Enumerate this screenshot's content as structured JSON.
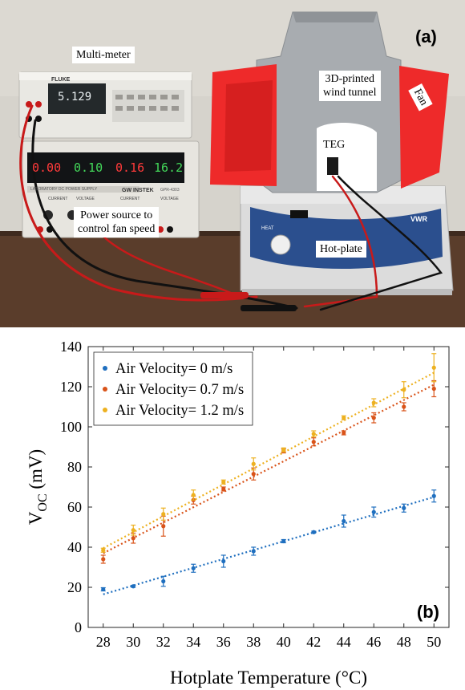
{
  "photo": {
    "panel_label": "(a)",
    "callouts": {
      "multimeter": "Multi-meter",
      "wind_tunnel": "3D-printed\nwind tunnel",
      "fan": "Fan",
      "teg": "TEG",
      "power_source": "Power source to\ncontrol fan speed",
      "hotplate": "Hot-plate"
    },
    "device_text": {
      "multimeter_reading": "5.129",
      "multimeter_brand": "FLUKE",
      "psu_brand": "GW INSTEK",
      "psu_title": "LABORATORY DC POWER SUPPLY",
      "psu_model": "GPR-4303",
      "psu_d1": "0.00",
      "psu_d2": "0.10",
      "psu_d3": "0.16",
      "psu_d4": "16.2",
      "psu_labels": [
        "CURRENT",
        "VOLTAGE",
        "CURRENT",
        "VOLTAGE"
      ],
      "hotplate_brand": "VWR",
      "hotplate_knob": "HEAT"
    },
    "colors": {
      "fan": "#ee2a2a",
      "tunnel": "#a8acb0",
      "wall": "#d6d3cc",
      "table": "#5a3d2b",
      "cable_red": "#c81a1a"
    }
  },
  "chart_data": {
    "type": "scatter",
    "panel_label": "(b)",
    "xlabel": "Hotplate Temperature (°C)",
    "ylabel_main": "V",
    "ylabel_sub": "OC",
    "ylabel_unit": " (mV)",
    "xlim": [
      27,
      51
    ],
    "ylim": [
      0,
      140
    ],
    "xticks": [
      28,
      30,
      32,
      34,
      36,
      38,
      40,
      42,
      44,
      46,
      48,
      50
    ],
    "yticks": [
      0,
      20,
      40,
      60,
      80,
      100,
      120,
      140
    ],
    "x": [
      28,
      30,
      32,
      34,
      36,
      38,
      40,
      42,
      44,
      46,
      48,
      50
    ],
    "legend_position": "top-left",
    "series": [
      {
        "name": "Air Velocity= 0 m/s",
        "color": "#1f6fbf",
        "values": [
          19,
          20.5,
          23,
          29.5,
          33,
          38,
          43,
          47.5,
          53,
          57.5,
          59.5,
          65.5
        ],
        "errors": [
          0.8,
          0.5,
          2.5,
          2,
          3,
          2,
          0.8,
          0.5,
          3,
          2.5,
          2,
          3
        ],
        "fit": [
          16.5,
          65
        ]
      },
      {
        "name": "Air Velocity= 0.7 m/s",
        "color": "#d95319",
        "values": [
          34,
          44.5,
          50.5,
          63.5,
          69,
          76.5,
          88,
          92.5,
          97,
          104.5,
          110,
          119
        ],
        "errors": [
          2,
          2.5,
          5,
          2,
          1,
          3,
          1,
          2,
          1,
          2.5,
          2,
          4
        ],
        "fit": [
          37,
          121
        ]
      },
      {
        "name": "Air Velocity= 1.2 m/s",
        "color": "#edb120",
        "values": [
          38.5,
          48.5,
          56.5,
          66,
          72.5,
          81.5,
          88.5,
          96.5,
          104.5,
          112,
          118.5,
          129.5
        ],
        "errors": [
          1,
          2.5,
          3,
          2.5,
          1,
          3,
          1,
          1.5,
          1,
          2,
          4,
          7
        ],
        "fit": [
          39.5,
          127
        ]
      }
    ]
  }
}
